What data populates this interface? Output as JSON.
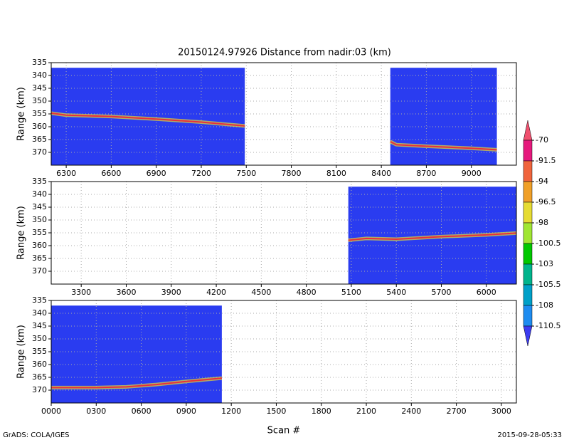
{
  "chart_data": [
    {
      "type": "line",
      "title": "20150124.97926    Distance from nadir:03 (km)",
      "y_label": "Range (km)",
      "xlim": [
        6200,
        9300
      ],
      "ylim": [
        375,
        335
      ],
      "xticks": [
        6300,
        6600,
        6900,
        7200,
        7500,
        7800,
        8100,
        8400,
        8700,
        9000
      ],
      "yticks": [
        335,
        340,
        345,
        350,
        355,
        360,
        365,
        370
      ],
      "grid": true,
      "coverage": [
        [
          6200,
          7490
        ],
        [
          8460,
          9170
        ]
      ],
      "coverage_top": 337,
      "coverage_color": "#2a3cf0",
      "series": [
        {
          "color": "#e8303a",
          "x": [
            6200,
            6300,
            6600,
            6900,
            7200,
            7490
          ],
          "values": [
            354.7,
            355.5,
            356,
            357,
            358.2,
            359.7
          ]
        },
        {
          "color": "#e8303a",
          "x": [
            8460,
            8500,
            8700,
            9000,
            9170
          ],
          "values": [
            365.8,
            367,
            367.6,
            368.4,
            369
          ]
        }
      ]
    },
    {
      "type": "line",
      "y_label": "Range (km)",
      "xlim": [
        3100,
        6200
      ],
      "ylim": [
        375,
        335
      ],
      "xticks": [
        3300,
        3600,
        3900,
        4200,
        4500,
        4800,
        5100,
        5400,
        5700,
        6000
      ],
      "yticks": [
        335,
        340,
        345,
        350,
        355,
        360,
        365,
        370
      ],
      "grid": true,
      "coverage": [
        [
          5080,
          6200
        ]
      ],
      "coverage_top": 337,
      "coverage_color": "#2a3cf0",
      "series": [
        {
          "color": "#e8303a",
          "x": [
            5080,
            5200,
            5400,
            5700,
            6000,
            6200
          ],
          "values": [
            357.9,
            357.2,
            357.5,
            356.5,
            355.8,
            355.1
          ]
        }
      ]
    },
    {
      "type": "line",
      "y_label": "Range (km)",
      "x_label": "Scan #",
      "xlim": [
        0,
        3100
      ],
      "ylim": [
        375,
        335
      ],
      "xticks": [
        {
          "value": 0,
          "label": "0000"
        },
        {
          "value": 300,
          "label": "0300"
        },
        {
          "value": 600,
          "label": "0600"
        },
        {
          "value": 900,
          "label": "0900"
        },
        1200,
        1500,
        1800,
        2100,
        2400,
        2700,
        3000
      ],
      "yticks": [
        335,
        340,
        345,
        350,
        355,
        360,
        365,
        370
      ],
      "grid": true,
      "coverage": [
        [
          0,
          1137
        ]
      ],
      "coverage_top": 337,
      "coverage_color": "#2a3cf0",
      "series": [
        {
          "color": "#e8303a",
          "x": [
            0,
            300,
            500,
            700,
            900,
            1137
          ],
          "values": [
            369,
            369,
            368.7,
            367.8,
            366.6,
            365.3
          ]
        }
      ]
    }
  ],
  "colorbar": {
    "levels": [
      -70,
      -91.5,
      -94,
      -96.5,
      -98,
      -100.5,
      -103,
      -105.5,
      -108,
      -110.5
    ],
    "colors": [
      "#f0506e",
      "#e6197d",
      "#f0643c",
      "#f0a028",
      "#e6dc32",
      "#a0e632",
      "#00c800",
      "#00b48c",
      "#00a0c8",
      "#1e8cf0",
      "#3c3cf0"
    ]
  },
  "footer_left": "GrADS: COLA/IGES",
  "footer_right": "2015-09-28-05:33"
}
